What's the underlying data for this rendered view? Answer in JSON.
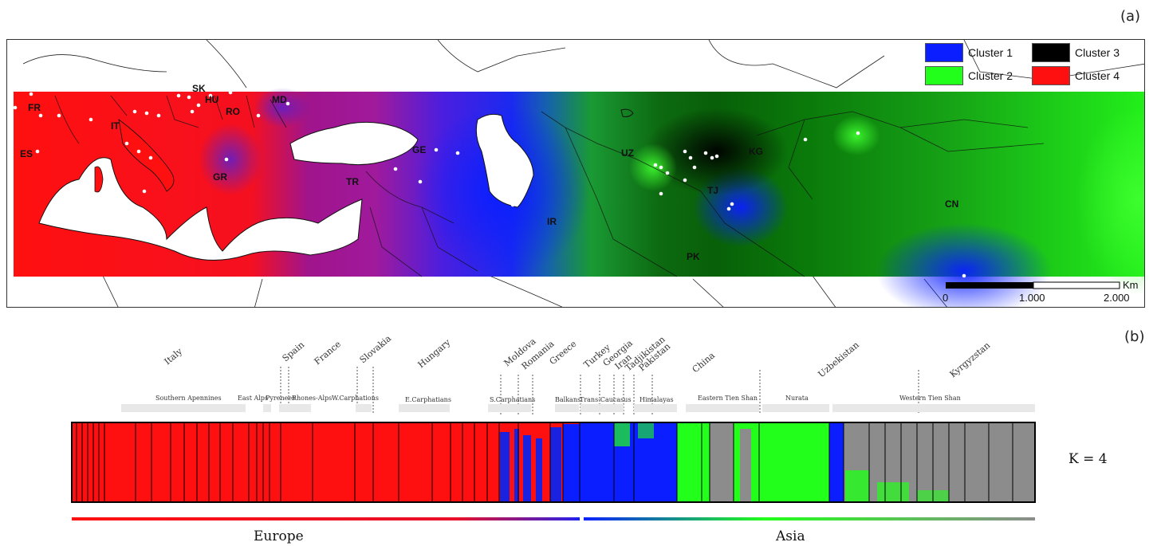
{
  "panel_a": "(a)",
  "panel_b": "(b)",
  "legend": [
    {
      "label": "Cluster 1",
      "color": "#0a1eff"
    },
    {
      "label": "Cluster 3",
      "color": "#000000"
    },
    {
      "label": "Cluster 2",
      "color": "#22ff1a"
    },
    {
      "label": "Cluster 4",
      "color": "#ff1010"
    }
  ],
  "country_codes": [
    "FR",
    "ES",
    "IT",
    "SK",
    "HU",
    "RO",
    "MD",
    "GR",
    "TR",
    "GE",
    "IR",
    "UZ",
    "KG",
    "TJ",
    "PK",
    "CN"
  ],
  "scale_bar": {
    "unit": "Km",
    "ticks": [
      "0",
      "1.000",
      "2.000"
    ]
  },
  "countries": [
    "Italy",
    "Spain",
    "France",
    "Slovakia",
    "Hungary",
    "Moldova",
    "Romania",
    "Greece",
    "Turkey",
    "Georgia",
    "Iran",
    "Tadjikistan",
    "Pakistan",
    "China",
    "Uzbekistan",
    "Kyrgyzstan"
  ],
  "regions": [
    "Southern Apennines",
    "East Alps",
    "Pyrenees",
    "Rhones-Alps",
    "W.Carphations",
    "E.Carphatians",
    "S.Carphatians",
    "Balkans",
    "Trans-Caucasus",
    "Himalayas",
    "Eastern Tien Shan",
    "Nurata",
    "Western Tien Shan"
  ],
  "k_label": "K = 4",
  "continents": {
    "europe": "Europe",
    "asia": "Asia"
  },
  "colors": {
    "cluster1": "#0a1eff",
    "cluster2": "#22ff1a",
    "cluster3": "#000000",
    "cluster4": "#ff1010",
    "cluster_gray": "#8c8c8c",
    "purple": "#8a1ab0"
  }
}
